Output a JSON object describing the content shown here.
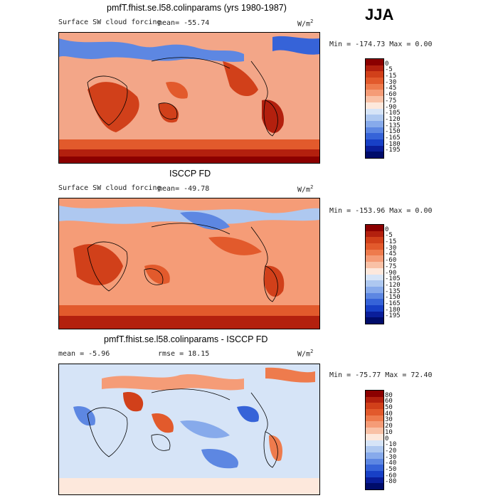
{
  "season": "JJA",
  "panels": [
    {
      "title": "pmfT.fhist.se.l58.colinparams (yrs 1980-1987)",
      "field_label": "Surface SW cloud forcing",
      "stat": "mean= -55.74",
      "rmse": "",
      "units_base": "W/m",
      "units_exp": "2",
      "minmax": "Min = -174.73 Max = 0.00",
      "levels": [
        "0",
        "-5",
        "-15",
        "-30",
        "-45",
        "-60",
        "-75",
        "-90",
        "-105",
        "-120",
        "-135",
        "-150",
        "-165",
        "-180",
        "-195"
      ],
      "colors": [
        "#8b0000",
        "#b3200e",
        "#d1401a",
        "#e25a2c",
        "#ee7b4d",
        "#f59c77",
        "#f9c1a6",
        "#fde8dc",
        "#d6e4f7",
        "#aec8f0",
        "#87aaeb",
        "#5d87e2",
        "#3663d8",
        "#1840c6",
        "#0a1e9a",
        "#000c6a"
      ]
    },
    {
      "title": "ISCCP FD",
      "field_label": "Surface SW cloud forcing",
      "stat": "mean= -49.78",
      "rmse": "",
      "units_base": "W/m",
      "units_exp": "2",
      "minmax": "Min = -153.96 Max = 0.00",
      "levels": [
        "0",
        "-5",
        "-15",
        "-30",
        "-45",
        "-60",
        "-75",
        "-90",
        "-105",
        "-120",
        "-135",
        "-150",
        "-165",
        "-180",
        "-195"
      ],
      "colors": [
        "#8b0000",
        "#b3200e",
        "#d1401a",
        "#e25a2c",
        "#ee7b4d",
        "#f59c77",
        "#f9c1a6",
        "#fde8dc",
        "#d6e4f7",
        "#aec8f0",
        "#87aaeb",
        "#5d87e2",
        "#3663d8",
        "#1840c6",
        "#0a1e9a",
        "#000c6a"
      ]
    },
    {
      "title": "pmfT.fhist.se.l58.colinparams - ISCCP FD",
      "field_label": "",
      "stat": "mean = -5.96",
      "rmse": "rmse = 18.15",
      "units_base": "W/m",
      "units_exp": "2",
      "minmax": "Min = -75.77 Max = 72.40",
      "levels": [
        "80",
        "60",
        "50",
        "40",
        "30",
        "20",
        "10",
        "0",
        "-10",
        "-20",
        "-30",
        "-40",
        "-50",
        "-60",
        "-80"
      ],
      "colors": [
        "#8b0000",
        "#b3200e",
        "#d1401a",
        "#e25a2c",
        "#ee7b4d",
        "#f59c77",
        "#f9c1a6",
        "#fde8dc",
        "#d6e4f7",
        "#aec8f0",
        "#87aaeb",
        "#5d87e2",
        "#3663d8",
        "#1840c6",
        "#0a1e9a",
        "#000c6a"
      ]
    }
  ],
  "chart_data": [
    {
      "type": "heatmap",
      "title": "pmfT.fhist.se.l58.colinparams (yrs 1980-1987)",
      "subtitle": "Surface SW cloud forcing",
      "units": "W/m2",
      "mean": -55.74,
      "min": -174.73,
      "max": 0.0,
      "contour_levels": [
        0,
        -5,
        -15,
        -30,
        -45,
        -60,
        -75,
        -90,
        -105,
        -120,
        -135,
        -150,
        -165,
        -180,
        -195
      ]
    },
    {
      "type": "heatmap",
      "title": "ISCCP FD",
      "subtitle": "Surface SW cloud forcing",
      "units": "W/m2",
      "mean": -49.78,
      "min": -153.96,
      "max": 0.0,
      "contour_levels": [
        0,
        -5,
        -15,
        -30,
        -45,
        -60,
        -75,
        -90,
        -105,
        -120,
        -135,
        -150,
        -165,
        -180,
        -195
      ]
    },
    {
      "type": "heatmap",
      "title": "pmfT.fhist.se.l58.colinparams - ISCCP FD",
      "units": "W/m2",
      "mean": -5.96,
      "rmse": 18.15,
      "min": -75.77,
      "max": 72.4,
      "contour_levels": [
        80,
        60,
        50,
        40,
        30,
        20,
        10,
        0,
        -10,
        -20,
        -30,
        -40,
        -50,
        -60,
        -80
      ]
    }
  ]
}
